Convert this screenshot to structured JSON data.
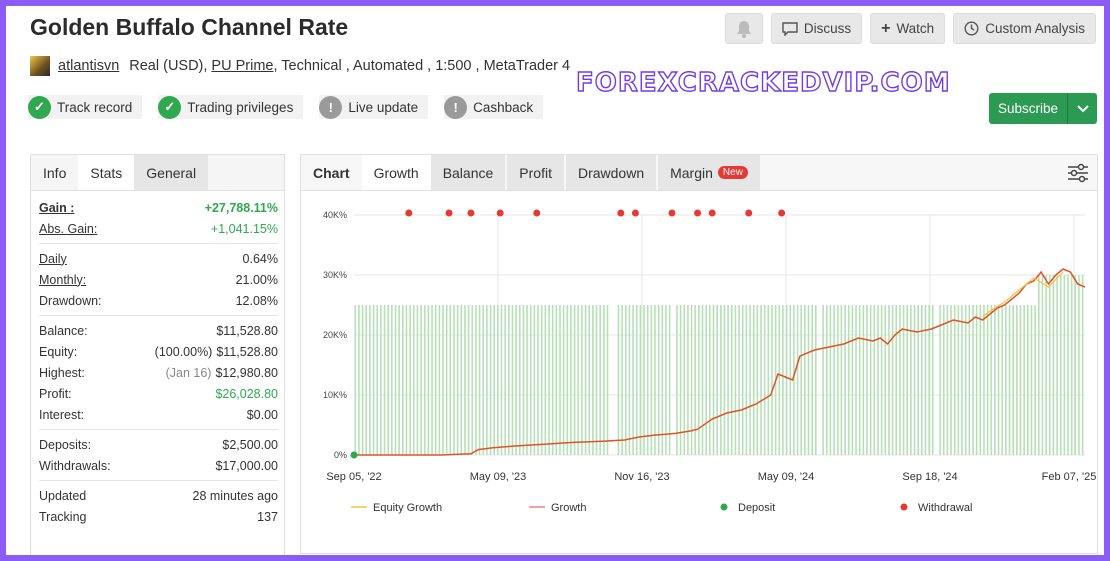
{
  "header": {
    "title": "Golden Buffalo Channel Rate",
    "actions": {
      "discuss": "Discuss",
      "watch": "Watch",
      "custom_analysis": "Custom Analysis"
    }
  },
  "meta": {
    "user": "atlantisvn",
    "account": "Real (USD),",
    "broker": "PU Prime",
    "rest": ", Technical , Automated , 1:500 , MetaTrader 4"
  },
  "badges": [
    "Track record",
    "Trading privileges",
    "Live update",
    "Cashback"
  ],
  "watermark": "FOREXCRACKEDVIP.COM",
  "subscribe": "Subscribe",
  "left_tabs": [
    "Info",
    "Stats",
    "General"
  ],
  "stats": {
    "gain_label": "Gain :",
    "gain": "+27,788.11%",
    "abs_gain_label": "Abs. Gain:",
    "abs_gain": "+1,041.15%",
    "daily_label": "Daily",
    "daily": "0.64%",
    "monthly_label": "Monthly:",
    "monthly": "21.00%",
    "drawdown_label": "Drawdown:",
    "drawdown": "12.08%",
    "balance_label": "Balance:",
    "balance": "$11,528.80",
    "equity_label": "Equity:",
    "equity_pct": "(100.00%)",
    "equity": "$11,528.80",
    "highest_label": "Highest:",
    "highest_date": "(Jan 16)",
    "highest": "$12,980.80",
    "profit_label": "Profit:",
    "profit": "$26,028.80",
    "interest_label": "Interest:",
    "interest": "$0.00",
    "deposits_label": "Deposits:",
    "deposits": "$2,500.00",
    "withdrawals_label": "Withdrawals:",
    "withdrawals": "$17,000.00",
    "updated_label": "Updated",
    "updated": "28 minutes ago",
    "tracking_label": "Tracking",
    "tracking": "137"
  },
  "chart_tabs": [
    "Chart",
    "Growth",
    "Balance",
    "Profit",
    "Drawdown",
    "Margin"
  ],
  "new_badge": "New",
  "chart_data": {
    "type": "line",
    "ylim": [
      0,
      40000
    ],
    "yticks": [
      "0%",
      "10K%",
      "20K%",
      "30K%",
      "40K%"
    ],
    "xticks": [
      "Sep 05, '22",
      "May 09, '23",
      "Nov 16, '23",
      "May 09, '24",
      "Sep 18, '24",
      "Feb 07, '25"
    ],
    "legend": [
      "Equity Growth",
      "Growth",
      "Deposit",
      "Withdrawal"
    ],
    "colors": {
      "equity": "#f5c242",
      "growth": "#e0522a",
      "deposit": "#2fa84f",
      "withdrawal": "#e53935",
      "bars": "#b7e0b7"
    },
    "growth_series": [
      [
        0,
        0
      ],
      [
        0.06,
        0
      ],
      [
        0.12,
        0
      ],
      [
        0.16,
        200
      ],
      [
        0.17,
        900
      ],
      [
        0.19,
        1200
      ],
      [
        0.22,
        1500
      ],
      [
        0.26,
        1800
      ],
      [
        0.3,
        2100
      ],
      [
        0.34,
        2300
      ],
      [
        0.37,
        2500
      ],
      [
        0.39,
        3000
      ],
      [
        0.41,
        3300
      ],
      [
        0.44,
        3600
      ],
      [
        0.46,
        4000
      ],
      [
        0.47,
        4300
      ],
      [
        0.49,
        6000
      ],
      [
        0.51,
        7000
      ],
      [
        0.53,
        7500
      ],
      [
        0.55,
        8500
      ],
      [
        0.57,
        10000
      ],
      [
        0.58,
        13500
      ],
      [
        0.59,
        13000
      ],
      [
        0.6,
        12500
      ],
      [
        0.61,
        16500
      ],
      [
        0.63,
        17500
      ],
      [
        0.65,
        18000
      ],
      [
        0.67,
        18500
      ],
      [
        0.69,
        19500
      ],
      [
        0.71,
        19000
      ],
      [
        0.72,
        19500
      ],
      [
        0.73,
        18500
      ],
      [
        0.74,
        20000
      ],
      [
        0.75,
        21000
      ],
      [
        0.77,
        20500
      ],
      [
        0.79,
        21000
      ],
      [
        0.8,
        21500
      ],
      [
        0.81,
        22000
      ],
      [
        0.82,
        22500
      ],
      [
        0.84,
        22000
      ],
      [
        0.85,
        23000
      ],
      [
        0.86,
        22500
      ],
      [
        0.87,
        23500
      ],
      [
        0.88,
        24500
      ],
      [
        0.89,
        25000
      ],
      [
        0.9,
        26000
      ],
      [
        0.91,
        27000
      ],
      [
        0.92,
        28500
      ],
      [
        0.93,
        29000
      ],
      [
        0.94,
        30500
      ],
      [
        0.95,
        28500
      ],
      [
        0.96,
        30000
      ],
      [
        0.97,
        31000
      ],
      [
        0.98,
        30500
      ],
      [
        0.99,
        28500
      ],
      [
        1.0,
        28000
      ]
    ],
    "equity_series": [
      [
        0.86,
        23000
      ],
      [
        0.87,
        24000
      ],
      [
        0.89,
        25500
      ],
      [
        0.91,
        27500
      ],
      [
        0.93,
        29500
      ],
      [
        0.95,
        28000
      ],
      [
        0.97,
        30500
      ]
    ],
    "deposit_points": [
      [
        0.0,
        0
      ]
    ],
    "withdrawal_x": [
      0.075,
      0.13,
      0.16,
      0.2,
      0.25,
      0.365,
      0.385,
      0.435,
      0.47,
      0.49,
      0.54,
      0.585
    ]
  }
}
